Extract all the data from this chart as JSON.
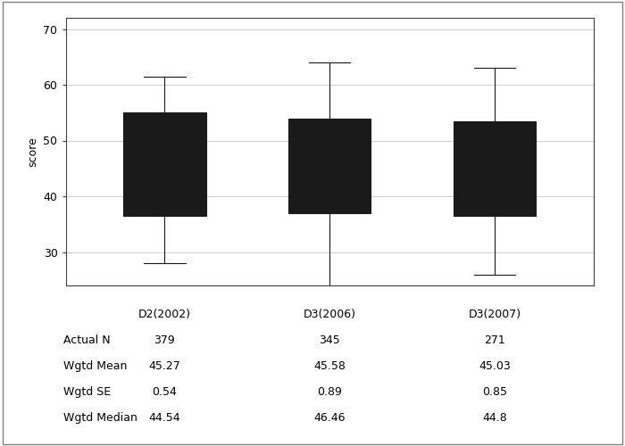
{
  "ylabel": "score",
  "categories": [
    "D2(2002)",
    "D3(2006)",
    "D3(2007)"
  ],
  "box_data": [
    {
      "whislo": 28.0,
      "q1": 36.5,
      "med": 44.54,
      "q3": 55.0,
      "whishi": 61.5,
      "mean": 45.27
    },
    {
      "whislo": 23.5,
      "q1": 37.0,
      "med": 46.46,
      "q3": 54.0,
      "whishi": 64.0,
      "mean": 45.58
    },
    {
      "whislo": 26.0,
      "q1": 36.5,
      "med": 44.8,
      "q3": 53.5,
      "whishi": 63.0,
      "mean": 45.03
    }
  ],
  "ylim": [
    24,
    72
  ],
  "yticks": [
    30,
    40,
    50,
    60,
    70
  ],
  "box_color": "#b8cce4",
  "box_edge_color": "#1a1a1a",
  "whisker_color": "#1a1a1a",
  "median_color": "#1a1a1a",
  "mean_marker": "D",
  "mean_marker_color": "none",
  "mean_marker_edge_color": "#1a1a1a",
  "mean_marker_size": 5,
  "table_rows": [
    "Actual N",
    "Wgtd Mean",
    "Wgtd SE",
    "Wgtd Median"
  ],
  "table_data": [
    [
      "379",
      "45.27",
      "0.54",
      "44.54"
    ],
    [
      "345",
      "45.58",
      "0.89",
      "46.46"
    ],
    [
      "271",
      "45.03",
      "0.85",
      "44.8"
    ]
  ],
  "background_color": "#ffffff",
  "grid_color": "#c8c8c8",
  "font_size": 9,
  "border_color": "#808080"
}
